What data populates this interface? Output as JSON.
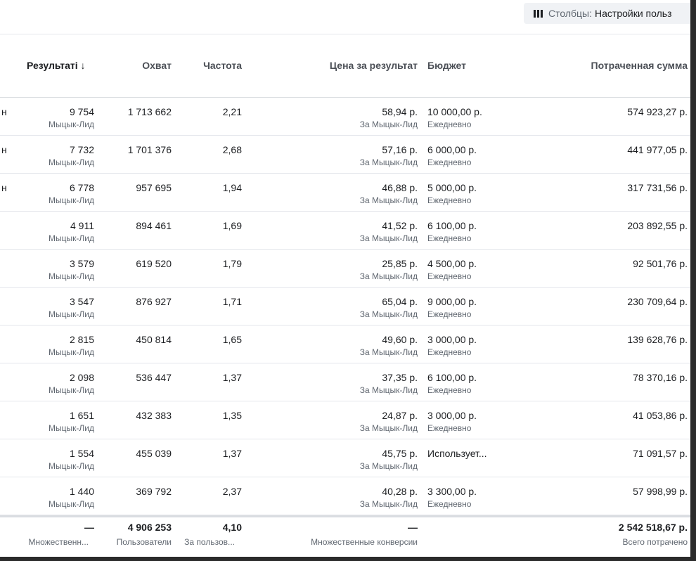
{
  "toolbar": {
    "columns_label": "Столбцы:",
    "columns_value": "Настройки польз"
  },
  "header": {
    "results": "Результаті ↓",
    "reach": "Охват",
    "frequency": "Частота",
    "cost_per_result": "Цена за результат",
    "budget": "Бюджет",
    "spent": "Потраченная сумма"
  },
  "rows": [
    {
      "edge": "н",
      "results": "9 754",
      "results_sub": "Мыцык-Лид",
      "reach": "1 713 662",
      "frequency": "2,21",
      "cost": "58,94 р.",
      "cost_sub": "За Мыцык-Лид",
      "budget": "10 000,00 р.",
      "budget_sub": "Ежедневно",
      "spent": "574 923,27 р."
    },
    {
      "edge": "н",
      "results": "7 732",
      "results_sub": "Мыцык-Лид",
      "reach": "1 701 376",
      "frequency": "2,68",
      "cost": "57,16 р.",
      "cost_sub": "За Мыцык-Лид",
      "budget": "6 000,00 р.",
      "budget_sub": "Ежедневно",
      "spent": "441 977,05 р."
    },
    {
      "edge": "н",
      "results": "6 778",
      "results_sub": "Мыцык-Лид",
      "reach": "957 695",
      "frequency": "1,94",
      "cost": "46,88 р.",
      "cost_sub": "За Мыцык-Лид",
      "budget": "5 000,00 р.",
      "budget_sub": "Ежедневно",
      "spent": "317 731,56 р."
    },
    {
      "edge": "",
      "results": "4 911",
      "results_sub": "Мыцык-Лид",
      "reach": "894 461",
      "frequency": "1,69",
      "cost": "41,52 р.",
      "cost_sub": "За Мыцык-Лид",
      "budget": "6 100,00 р.",
      "budget_sub": "Ежедневно",
      "spent": "203 892,55 р."
    },
    {
      "edge": "",
      "results": "3 579",
      "results_sub": "Мыцык-Лид",
      "reach": "619 520",
      "frequency": "1,79",
      "cost": "25,85 р.",
      "cost_sub": "За Мыцык-Лид",
      "budget": "4 500,00 р.",
      "budget_sub": "Ежедневно",
      "spent": "92 501,76 р."
    },
    {
      "edge": "",
      "results": "3 547",
      "results_sub": "Мыцык-Лид",
      "reach": "876 927",
      "frequency": "1,71",
      "cost": "65,04 р.",
      "cost_sub": "За Мыцык-Лид",
      "budget": "9 000,00 р.",
      "budget_sub": "Ежедневно",
      "spent": "230 709,64 р."
    },
    {
      "edge": "",
      "results": "2 815",
      "results_sub": "Мыцык-Лид",
      "reach": "450 814",
      "frequency": "1,65",
      "cost": "49,60 р.",
      "cost_sub": "За Мыцык-Лид",
      "budget": "3 000,00 р.",
      "budget_sub": "Ежедневно",
      "spent": "139 628,76 р."
    },
    {
      "edge": "",
      "results": "2 098",
      "results_sub": "Мыцык-Лид",
      "reach": "536 447",
      "frequency": "1,37",
      "cost": "37,35 р.",
      "cost_sub": "За Мыцык-Лид",
      "budget": "6 100,00 р.",
      "budget_sub": "Ежедневно",
      "spent": "78 370,16 р."
    },
    {
      "edge": "",
      "results": "1 651",
      "results_sub": "Мыцык-Лид",
      "reach": "432 383",
      "frequency": "1,35",
      "cost": "24,87 р.",
      "cost_sub": "За Мыцык-Лид",
      "budget": "3 000,00 р.",
      "budget_sub": "Ежедневно",
      "spent": "41 053,86 р."
    },
    {
      "edge": "",
      "results": "1 554",
      "results_sub": "Мыцык-Лид",
      "reach": "455 039",
      "frequency": "1,37",
      "cost": "45,75 р.",
      "cost_sub": "За Мыцык-Лид",
      "budget": "Использует...",
      "budget_sub": "",
      "spent": "71 091,57 р."
    },
    {
      "edge": "",
      "results": "1 440",
      "results_sub": "Мыцык-Лид",
      "reach": "369 792",
      "frequency": "2,37",
      "cost": "40,28 р.",
      "cost_sub": "За Мыцык-Лид",
      "budget": "3 300,00 р.",
      "budget_sub": "Ежедневно",
      "spent": "57 998,99 р."
    }
  ],
  "totals": {
    "results": "—",
    "results_sub": "Множественн...",
    "reach": "4 906 253",
    "reach_sub": "Пользователи",
    "frequency": "4,10",
    "frequency_sub": "За пользов...",
    "cost": "—",
    "cost_sub": "Множественные конверсии",
    "spent": "2 542 518,67 р.",
    "spent_sub": "Всего потрачено"
  }
}
